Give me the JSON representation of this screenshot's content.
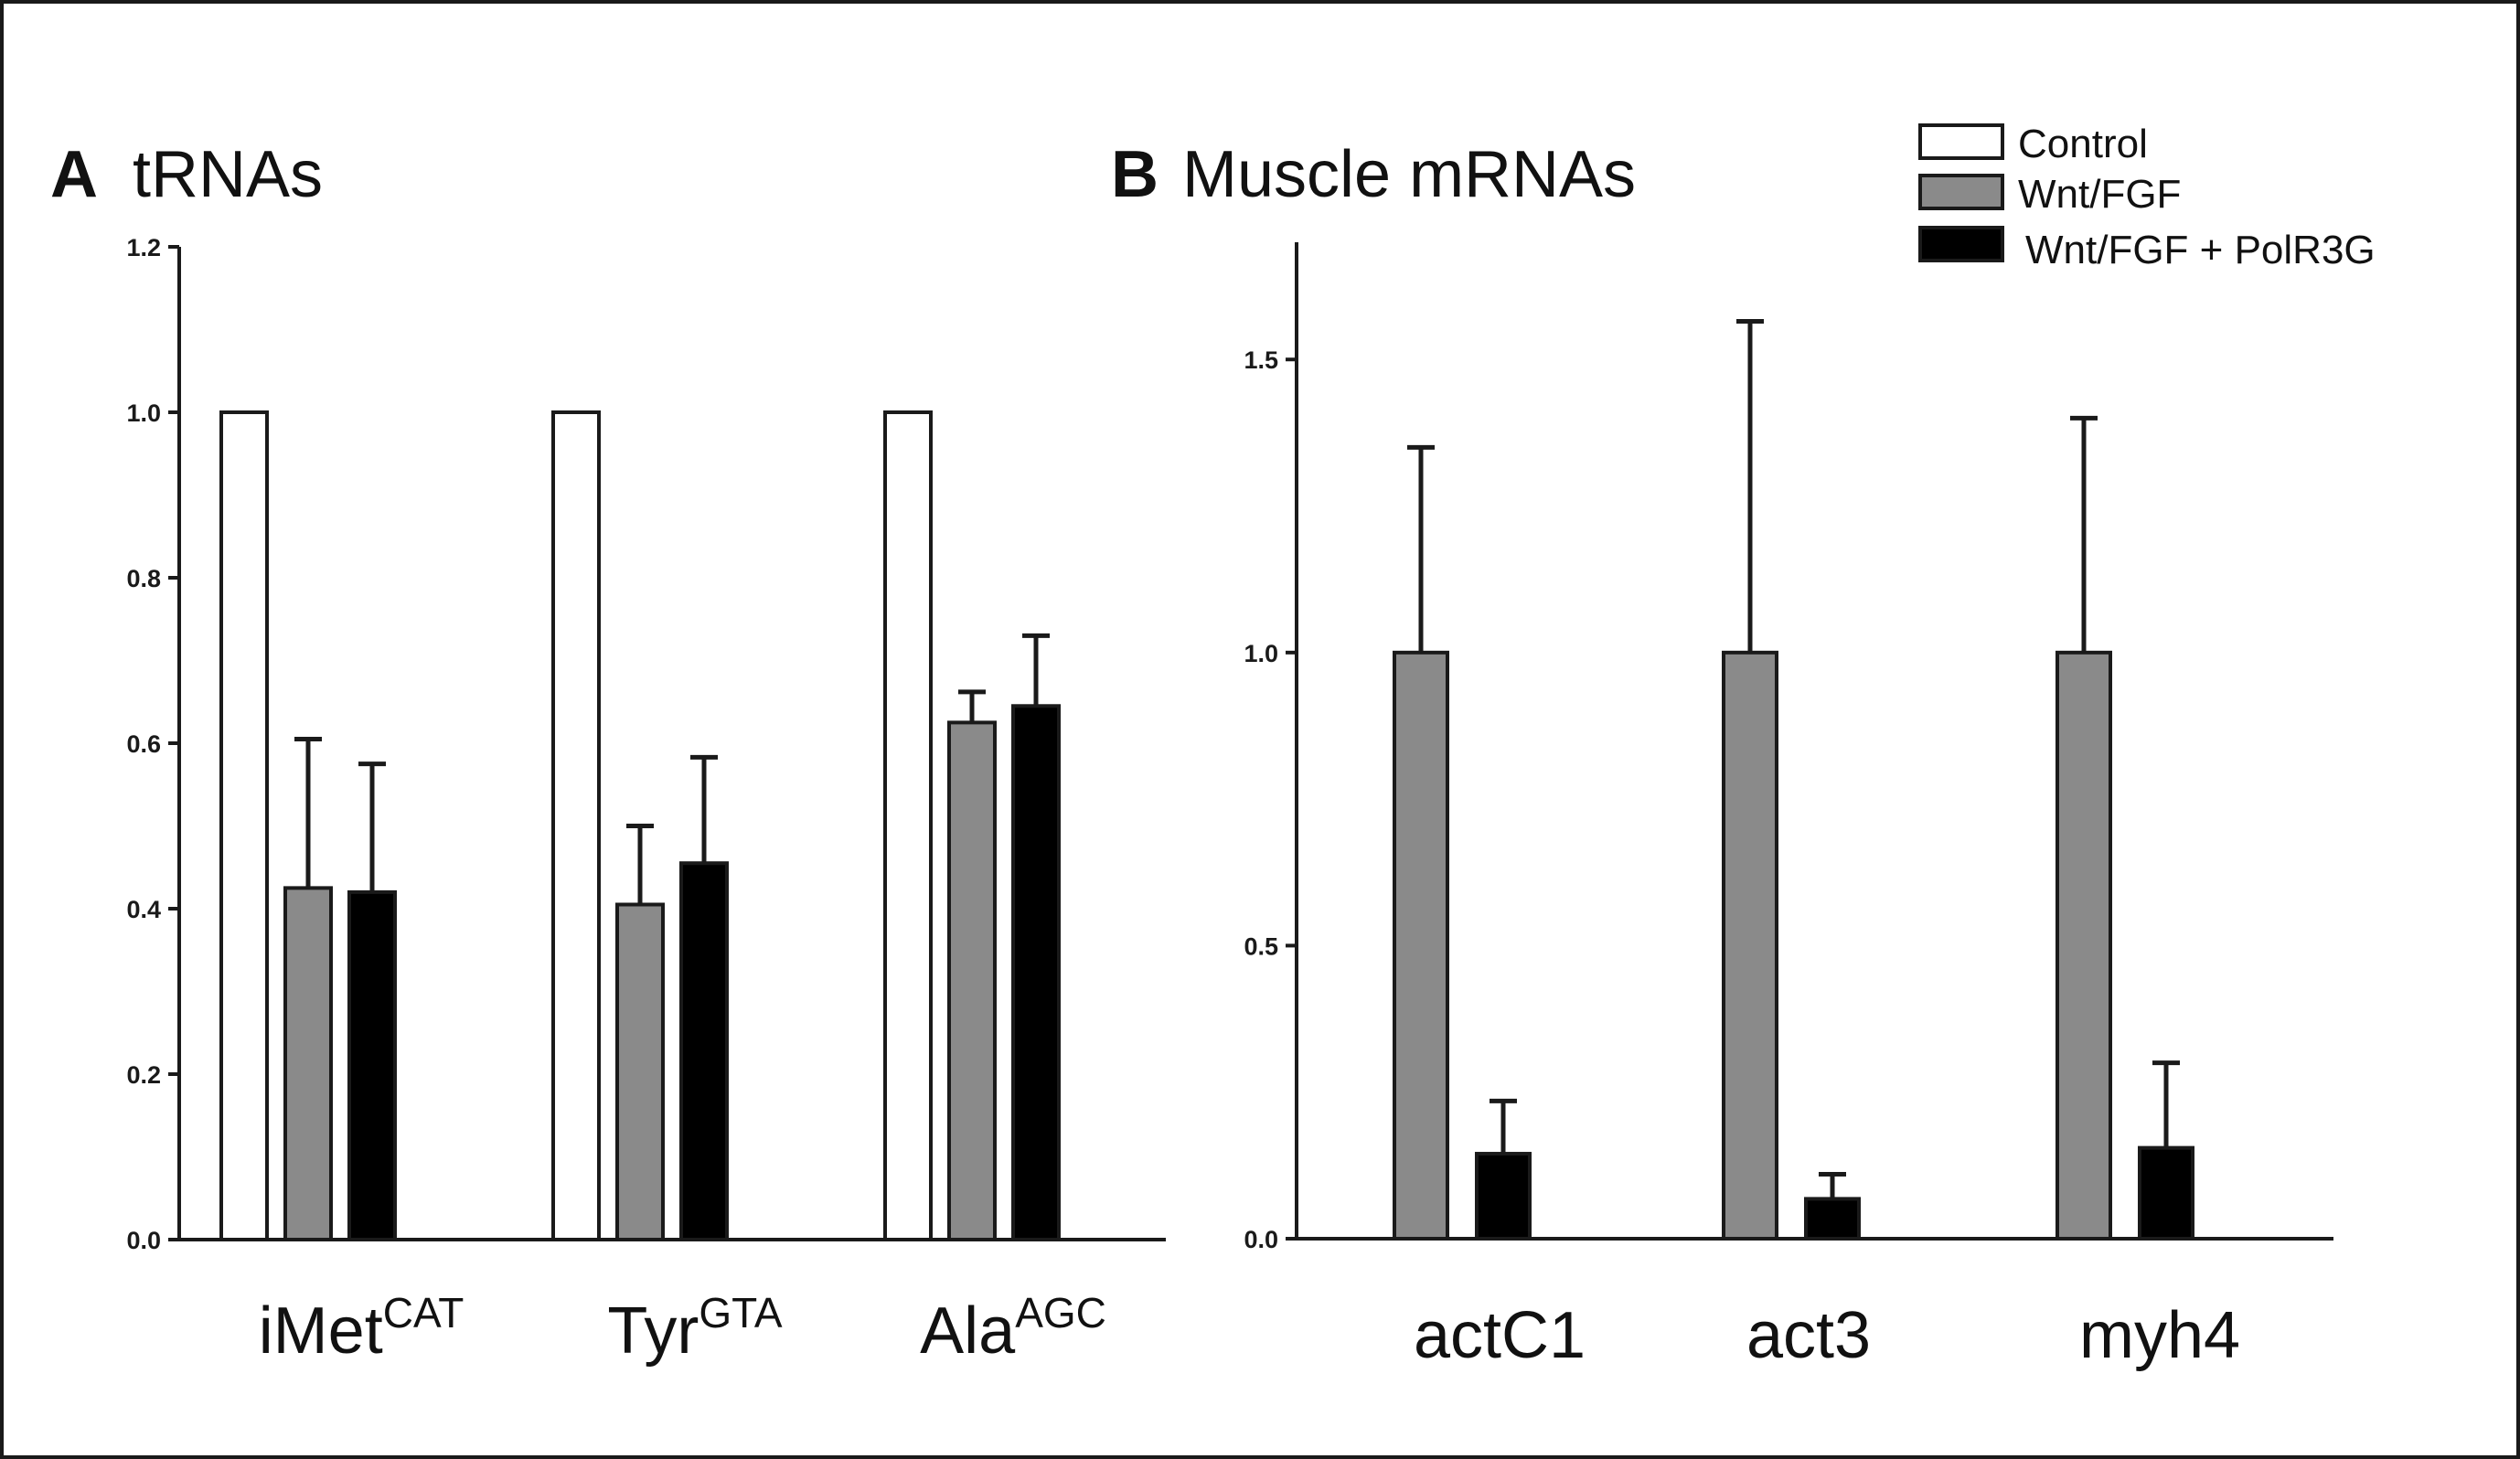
{
  "colors": {
    "Control": "#ffffff",
    "Wnt/FGF": "#8a8a8a",
    "Wnt/FGF + PolR3G": "#000000",
    "stroke": "#1a1a1a"
  },
  "legend": [
    "Control",
    "Wnt/FGF",
    "Wnt/FGF + PolR3G"
  ],
  "chart_data": [
    {
      "type": "bar",
      "panel": "A",
      "title": "tRNAs",
      "categories": [
        {
          "base": "iMet",
          "sup": "CAT"
        },
        {
          "base": "Tyr",
          "sup": "GTA"
        },
        {
          "base": "Ala",
          "sup": "AGC"
        }
      ],
      "ylim": [
        0,
        1.2
      ],
      "yticks": [
        "0.0",
        "0.2",
        "0.4",
        "0.6",
        "0.8",
        "1.0",
        "1.2"
      ],
      "series": [
        {
          "name": "Control",
          "values": [
            1.0,
            1.0,
            1.0
          ],
          "errors": [
            null,
            null,
            null
          ]
        },
        {
          "name": "Wnt/FGF",
          "values": [
            0.425,
            0.405,
            0.625
          ],
          "errors": [
            0.18,
            0.095,
            0.037
          ]
        },
        {
          "name": "Wnt/FGF + PolR3G",
          "values": [
            0.42,
            0.455,
            0.645
          ],
          "errors": [
            0.155,
            0.128,
            0.085
          ]
        }
      ]
    },
    {
      "type": "bar",
      "panel": "B",
      "title": "Muscle mRNAs",
      "categories": [
        {
          "base": "actC1",
          "sup": ""
        },
        {
          "base": "act3",
          "sup": ""
        },
        {
          "base": "myh4",
          "sup": ""
        }
      ],
      "ylim": [
        0,
        1.7
      ],
      "yticks": [
        "0.0",
        "0.5",
        "1.0",
        "1.5"
      ],
      "series": [
        {
          "name": "Wnt/FGF",
          "values": [
            1.0,
            1.0,
            1.0
          ],
          "errors": [
            0.35,
            0.565,
            0.4
          ]
        },
        {
          "name": "Wnt/FGF + PolR3G",
          "values": [
            0.145,
            0.068,
            0.155
          ],
          "errors": [
            0.09,
            0.042,
            0.145
          ]
        }
      ]
    }
  ]
}
